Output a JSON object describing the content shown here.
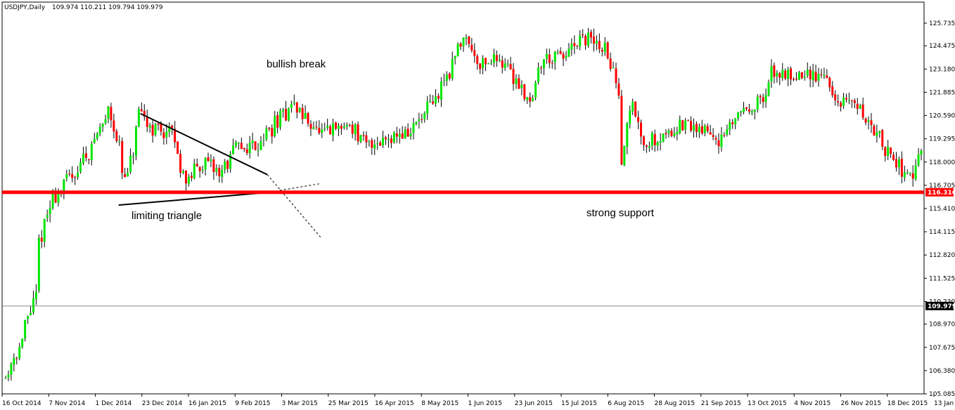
{
  "chart_data": {
    "type": "candlestick",
    "symbol_label": "USDJPY,Daily",
    "ohlc_label": "109.974 110.211 109.794 109.979",
    "y_ticks": [
      "125.735",
      "124.475",
      "123.180",
      "121.885",
      "120.590",
      "119.295",
      "118.000",
      "116.705",
      "115.410",
      "114.115",
      "112.820",
      "111.525",
      "110.230",
      "108.970",
      "107.675",
      "106.380",
      "105.085"
    ],
    "ylim": [
      105.085,
      126.5
    ],
    "x_labels": [
      "16 Oct 2014",
      "7 Nov 2014",
      "1 Dec 2014",
      "23 Dec 2014",
      "16 Jan 2015",
      "9 Feb 2015",
      "3 Mar 2015",
      "25 Mar 2015",
      "16 Apr 2015",
      "8 May 2015",
      "1 Jun 2015",
      "23 Jun 2015",
      "15 Jul 2015",
      "6 Aug 2015",
      "28 Aug 2015",
      "21 Sep 2015",
      "13 Oct 2015",
      "4 Nov 2015",
      "26 Nov 2015",
      "18 Dec 2015",
      "13 Jan 2016"
    ],
    "price_path": [
      [
        "16 Oct 2014",
        106.0
      ],
      [
        "24 Oct 2014",
        107.9
      ],
      [
        "31 Oct 2014",
        110.5
      ],
      [
        "1 Nov 2014",
        112.5
      ],
      [
        "7 Nov 2014",
        115.5
      ],
      [
        "15 Nov 2014",
        116.8
      ],
      [
        "24 Nov 2014",
        118.0
      ],
      [
        "1 Dec 2014",
        119.3
      ],
      [
        "8 Dec 2014",
        121.2
      ],
      [
        "12 Dec 2014",
        118.8
      ],
      [
        "16 Dec 2014",
        116.9
      ],
      [
        "23 Dec 2014",
        120.5
      ],
      [
        "30 Dec 2014",
        119.9
      ],
      [
        "8 Jan 2015",
        119.6
      ],
      [
        "16 Jan 2015",
        116.8
      ],
      [
        "23 Jan 2015",
        118.0
      ],
      [
        "2 Feb 2015",
        117.4
      ],
      [
        "9 Feb 2015",
        118.7
      ],
      [
        "20 Feb 2015",
        119.0
      ],
      [
        "3 Mar 2015",
        120.3
      ],
      [
        "10 Mar 2015",
        121.2
      ],
      [
        "18 Mar 2015",
        120.3
      ],
      [
        "25 Mar 2015",
        119.5
      ],
      [
        "8 Apr 2015",
        120.1
      ],
      [
        "16 Apr 2015",
        118.9
      ],
      [
        "29 Apr 2015",
        119.5
      ],
      [
        "8 May 2015",
        119.6
      ],
      [
        "20 May 2015",
        121.2
      ],
      [
        "1 Jun 2015",
        124.0
      ],
      [
        "5 Jun 2015",
        125.3
      ],
      [
        "12 Jun 2015",
        123.5
      ],
      [
        "23 Jun 2015",
        123.8
      ],
      [
        "8 Jul 2015",
        121.5
      ],
      [
        "15 Jul 2015",
        123.8
      ],
      [
        "24 Jul 2015",
        123.8
      ],
      [
        "6 Aug 2015",
        124.9
      ],
      [
        "14 Aug 2015",
        124.3
      ],
      [
        "19 Aug 2015",
        123.3
      ],
      [
        "24 Aug 2015",
        118.3
      ],
      [
        "28 Aug 2015",
        121.5
      ],
      [
        "4 Sep 2015",
        119.0
      ],
      [
        "21 Sep 2015",
        120.0
      ],
      [
        "2 Oct 2015",
        119.9
      ],
      [
        "13 Oct 2015",
        119.2
      ],
      [
        "22 Oct 2015",
        120.9
      ],
      [
        "4 Nov 2015",
        121.5
      ],
      [
        "6 Nov 2015",
        123.0
      ],
      [
        "26 Nov 2015",
        122.8
      ],
      [
        "4 Dec 2015",
        122.9
      ],
      [
        "11 Dec 2015",
        121.0
      ],
      [
        "18 Dec 2015",
        121.5
      ],
      [
        "24 Dec 2015",
        120.5
      ],
      [
        "5 Jan 2016",
        118.5
      ],
      [
        "13 Jan 2016",
        117.5
      ],
      [
        "18 Jan 2016",
        117.0
      ],
      [
        "21 Jan 2016",
        118.5
      ]
    ],
    "levels": {
      "support": {
        "value": 116.316,
        "label": "116.316",
        "color": "#ff0000"
      },
      "current": {
        "value": 109.979,
        "label": "109.979",
        "color": "#000000"
      }
    },
    "annotations": {
      "bullish_break": "bullish break",
      "limiting_triangle": "limiting triangle",
      "strong_support": "strong support"
    },
    "triangle": {
      "upper": [
        [
          "23 Dec 2014",
          120.7
        ],
        [
          "25 Feb 2015",
          117.3
        ]
      ],
      "upper_extension": [
        [
          "25 Feb 2015",
          117.3
        ],
        [
          "24 Mar 2015",
          113.8
        ]
      ],
      "lower": [
        [
          "12 Dec 2014",
          115.6
        ],
        [
          "25 Feb 2015",
          116.3
        ]
      ],
      "lower_extension": [
        [
          "25 Feb 2015",
          116.3
        ],
        [
          "24 Mar 2015",
          116.8
        ]
      ]
    },
    "colors": {
      "bull": "#00e600",
      "bear": "#ff0000",
      "wick": "#000000",
      "grid": "#000000"
    },
    "grid": false
  }
}
